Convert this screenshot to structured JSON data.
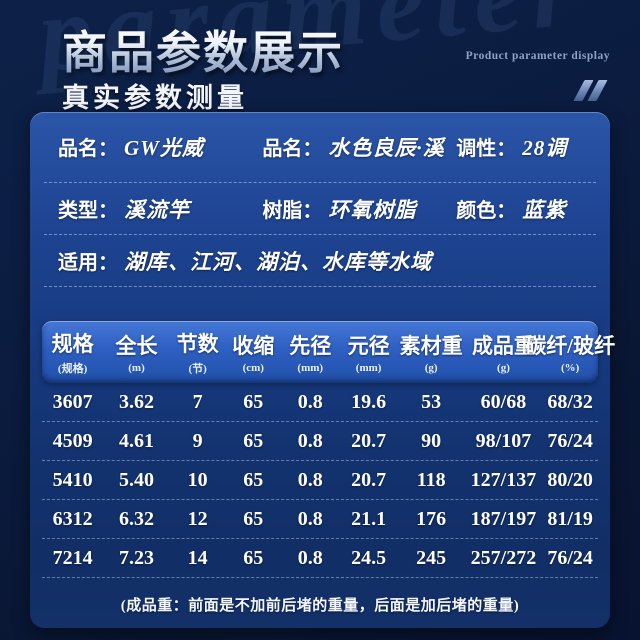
{
  "page": {
    "watermark": "parameter",
    "title": "商品参数展示",
    "subtitle": "真实参数测量",
    "title_en": "Product parameter display"
  },
  "info_panel": {
    "rows": [
      {
        "cells": [
          {
            "label": "品名：",
            "value": "GW光威"
          },
          {
            "label": "品名：",
            "value": "水色良辰·溪"
          },
          {
            "label": "调性：",
            "value": "28调"
          }
        ]
      },
      {
        "cells": [
          {
            "label": "类型：",
            "value": "溪流竿"
          },
          {
            "label": "树脂：",
            "value": "环氧树脂"
          },
          {
            "label": "颜色：",
            "value": "蓝紫"
          }
        ]
      },
      {
        "cells": [
          {
            "label": "适用：",
            "value": "湖库、江河、湖泊、水库等水域"
          }
        ]
      }
    ]
  },
  "spec_table": {
    "columns": [
      {
        "title": "规格",
        "unit": "(规格)"
      },
      {
        "title": "全长",
        "unit": "(m)"
      },
      {
        "title": "节数",
        "unit": "(节)"
      },
      {
        "title": "收缩",
        "unit": "(cm)"
      },
      {
        "title": "先径",
        "unit": "(mm)"
      },
      {
        "title": "元径",
        "unit": "(mm)"
      },
      {
        "title": "素材重",
        "unit": "(g)"
      },
      {
        "title": "成品重",
        "unit": "(g)"
      },
      {
        "title": "碳纤/玻纤",
        "unit": "(%)"
      }
    ],
    "rows": [
      [
        "3607",
        "3.62",
        "7",
        "65",
        "0.8",
        "19.6",
        "53",
        "60/68",
        "68/32"
      ],
      [
        "4509",
        "4.61",
        "9",
        "65",
        "0.8",
        "20.7",
        "90",
        "98/107",
        "76/24"
      ],
      [
        "5410",
        "5.40",
        "10",
        "65",
        "0.8",
        "20.7",
        "118",
        "127/137",
        "80/20"
      ],
      [
        "6312",
        "6.32",
        "12",
        "65",
        "0.8",
        "21.1",
        "176",
        "187/197",
        "81/19"
      ],
      [
        "7214",
        "7.23",
        "14",
        "65",
        "0.8",
        "24.5",
        "245",
        "257/272",
        "76/24"
      ]
    ],
    "footnote": "(成品重：前面是不加前后堵的重量，后面是加后堵的重量)"
  },
  "colors": {
    "background": "#0b1c40",
    "panel_top": "#2b55a8",
    "panel_bottom": "#112e66",
    "table_header_blue": "#2e5fc2",
    "text": "#ffffff",
    "muted_text": "#8fa2c6"
  }
}
